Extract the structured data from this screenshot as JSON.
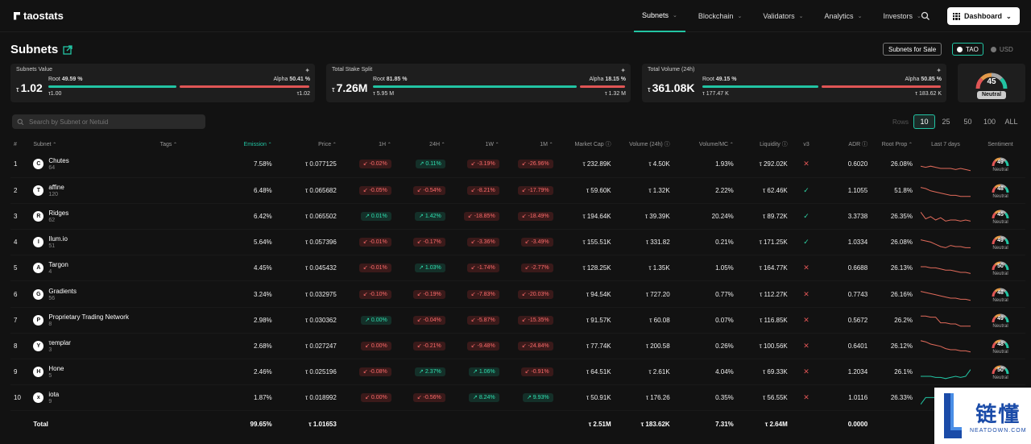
{
  "nav": {
    "logo": "taostats",
    "items": [
      {
        "label": "Subnets",
        "active": true
      },
      {
        "label": "Blockchain"
      },
      {
        "label": "Validators"
      },
      {
        "label": "Analytics"
      },
      {
        "label": "Investors"
      }
    ],
    "dashboard_label": "Dashboard"
  },
  "page": {
    "title": "Subnets",
    "sale_button": "Subnets for Sale",
    "currency": [
      "TAO",
      "USD"
    ]
  },
  "cards": {
    "value": {
      "label": "Subnets Value",
      "symbol": "τ",
      "big": "1.02",
      "root_label": "Root",
      "root_pct": "49.59 %",
      "alpha_label": "Alpha",
      "alpha_pct": "50.41 %",
      "root_val": "τ1.00",
      "alpha_val": "τ1.02",
      "root_fraction": 0.4959
    },
    "stake": {
      "label": "Total Stake Split",
      "symbol": "τ",
      "big": "7.26M",
      "root_label": "Root",
      "root_pct": "81.85 %",
      "alpha_label": "Alpha",
      "alpha_pct": "18.15 %",
      "root_val": "τ 5.95 M",
      "alpha_val": "τ 1.32 M",
      "root_fraction": 0.8185
    },
    "volume": {
      "label": "Total Volume (24h)",
      "symbol": "τ",
      "big": "361.08K",
      "root_label": "Root",
      "root_pct": "49.15 %",
      "alpha_label": "Alpha",
      "alpha_pct": "50.85 %",
      "root_val": "τ 177.47 K",
      "alpha_val": "τ 183.62 K",
      "root_fraction": 0.4915
    }
  },
  "fear_greed": {
    "value": "45",
    "label": "Neutral",
    "level": 45
  },
  "search": {
    "placeholder": "Search by Subnet or Netuid"
  },
  "rows_control": {
    "label": "Rows",
    "options": [
      "10",
      "25",
      "50",
      "100",
      "ALL"
    ],
    "selected": "10"
  },
  "table": {
    "headers": [
      "#",
      "Subnet",
      "Tags",
      "Emission",
      "Price",
      "1H",
      "24H",
      "1W",
      "1M",
      "Market Cap",
      "Volume (24h)",
      "Volume/MC",
      "Liquidity",
      "v3",
      "ADR",
      "Root Prop",
      "Last 7 days",
      "Sentiment"
    ],
    "rows": [
      {
        "n": "1",
        "name": "Chutes",
        "netuid": "64",
        "icon": "C",
        "emission": "7.58%",
        "price": "τ 0.077125",
        "h1": "-0.02%",
        "h24": "0.11%",
        "w1": "-3.19%",
        "m1": "-26.96%",
        "mcap": "τ 232.89K",
        "vol": "τ 4.50K",
        "vmc": "1.93%",
        "liq": "τ 292.02K",
        "v3": "x",
        "adr": "0.6020",
        "rp": "26.08%",
        "sent": "49",
        "sentl": "Neutral",
        "spark": [
          8,
          9,
          8,
          9,
          10,
          10,
          10,
          11,
          10,
          11,
          12
        ],
        "sc": "#e06a5a"
      },
      {
        "n": "2",
        "name": "affine",
        "netuid": "120",
        "icon": "T",
        "emission": "6.48%",
        "price": "τ 0.065682",
        "h1": "-0.05%",
        "h24": "-0.54%",
        "w1": "-8.21%",
        "m1": "-17.79%",
        "mcap": "τ 59.60K",
        "vol": "τ 1.32K",
        "vmc": "2.22%",
        "liq": "τ 62.46K",
        "v3": "ok",
        "adr": "1.1055",
        "rp": "51.8%",
        "sent": "48",
        "sentl": "Neutral",
        "spark": [
          4,
          5,
          7,
          8,
          9,
          10,
          11,
          11,
          12,
          12,
          12
        ],
        "sc": "#e06a5a"
      },
      {
        "n": "3",
        "name": "Ridges",
        "netuid": "62",
        "icon": "R",
        "emission": "6.42%",
        "price": "τ 0.065502",
        "h1": "0.01%",
        "h24": "1.42%",
        "w1": "-18.85%",
        "m1": "-18.49%",
        "mcap": "τ 194.64K",
        "vol": "τ 39.39K",
        "vmc": "20.24%",
        "liq": "τ 89.72K",
        "v3": "ok",
        "adr": "3.3738",
        "rp": "26.35%",
        "sent": "45",
        "sentl": "Neutral",
        "spark": [
          3,
          9,
          7,
          10,
          8,
          11,
          10,
          10,
          11,
          10,
          11
        ],
        "sc": "#e06a5a"
      },
      {
        "n": "4",
        "name": "Ilum.io",
        "netuid": "51",
        "icon": "I",
        "emission": "5.64%",
        "price": "τ 0.057396",
        "h1": "-0.01%",
        "h24": "-0.17%",
        "w1": "-3.36%",
        "m1": "-3.49%",
        "mcap": "τ 155.51K",
        "vol": "τ 331.82",
        "vmc": "0.21%",
        "liq": "τ 171.25K",
        "v3": "ok",
        "adr": "1.0334",
        "rp": "26.08%",
        "sent": "49",
        "sentl": "Neutral",
        "spark": [
          4,
          5,
          6,
          8,
          10,
          11,
          9,
          10,
          10,
          11,
          11
        ],
        "sc": "#e06a5a"
      },
      {
        "n": "5",
        "name": "Targon",
        "netuid": "4",
        "icon": "A",
        "emission": "4.45%",
        "price": "τ 0.045432",
        "h1": "-0.01%",
        "h24": "1.03%",
        "w1": "-1.74%",
        "m1": "-2.77%",
        "mcap": "τ 128.25K",
        "vol": "τ 1.35K",
        "vmc": "1.05%",
        "liq": "τ 164.77K",
        "v3": "x",
        "adr": "0.6688",
        "rp": "26.13%",
        "sent": "50",
        "sentl": "Neutral",
        "spark": [
          5,
          5,
          6,
          6,
          7,
          8,
          8,
          9,
          10,
          10,
          11
        ],
        "sc": "#e06a5a"
      },
      {
        "n": "6",
        "name": "Gradients",
        "netuid": "56",
        "icon": "G",
        "emission": "3.24%",
        "price": "τ 0.032975",
        "h1": "-0.10%",
        "h24": "-0.19%",
        "w1": "-7.83%",
        "m1": "-20.03%",
        "mcap": "τ 94.54K",
        "vol": "τ 727.20",
        "vmc": "0.77%",
        "liq": "τ 112.27K",
        "v3": "x",
        "adr": "0.7743",
        "rp": "26.16%",
        "sent": "48",
        "sentl": "Neutral",
        "spark": [
          4,
          5,
          6,
          7,
          8,
          9,
          10,
          10,
          11,
          11,
          12
        ],
        "sc": "#e06a5a"
      },
      {
        "n": "7",
        "name": "Proprietary Trading Network",
        "netuid": "8",
        "icon": "P",
        "emission": "2.98%",
        "price": "τ 0.030362",
        "h1": "0.00%",
        "h24": "-0.04%",
        "w1": "-5.87%",
        "m1": "-15.35%",
        "mcap": "τ 91.57K",
        "vol": "τ 60.08",
        "vmc": "0.07%",
        "liq": "τ 116.85K",
        "v3": "x",
        "adr": "0.5672",
        "rp": "26.2%",
        "sent": "49",
        "sentl": "Neutral",
        "spark": [
          3,
          3,
          4,
          4,
          9,
          9,
          10,
          10,
          12,
          12,
          12
        ],
        "sc": "#e06a5a"
      },
      {
        "n": "8",
        "name": "τemplar",
        "netuid": "3",
        "icon": "Y",
        "emission": "2.68%",
        "price": "τ 0.027247",
        "h1": "0.00%",
        "h24": "-0.21%",
        "w1": "-9.48%",
        "m1": "-24.84%",
        "mcap": "τ 77.74K",
        "vol": "τ 200.58",
        "vmc": "0.26%",
        "liq": "τ 100.56K",
        "v3": "x",
        "adr": "0.6401",
        "rp": "26.12%",
        "sent": "48",
        "sentl": "Neutral",
        "spark": [
          2,
          3,
          5,
          6,
          7,
          9,
          10,
          10,
          11,
          11,
          12
        ],
        "sc": "#e06a5a"
      },
      {
        "n": "9",
        "name": "Hone",
        "netuid": "5",
        "icon": "H",
        "emission": "2.46%",
        "price": "τ 0.025196",
        "h1": "-0.08%",
        "h24": "2.37%",
        "w1": "1.06%",
        "m1": "-0.91%",
        "mcap": "τ 64.51K",
        "vol": "τ 2.61K",
        "vmc": "4.04%",
        "liq": "τ 69.33K",
        "v3": "x",
        "adr": "1.2034",
        "rp": "26.1%",
        "sent": "50",
        "sentl": "Neutral",
        "spark": [
          10,
          10,
          10,
          11,
          11,
          12,
          11,
          10,
          11,
          10,
          4
        ],
        "sc": "#22c4a3"
      },
      {
        "n": "10",
        "name": "iota",
        "netuid": "9",
        "icon": "x",
        "emission": "1.87%",
        "price": "τ 0.018992",
        "h1": "0.00%",
        "h24": "-0.56%",
        "w1": "8.24%",
        "m1": "9.93%",
        "mcap": "τ 50.91K",
        "vol": "τ 176.26",
        "vmc": "0.35%",
        "liq": "τ 56.55K",
        "v3": "x",
        "adr": "1.0116",
        "rp": "26.33%",
        "sent": "",
        "sentl": "",
        "spark": [
          12,
          6,
          6,
          6,
          6,
          6,
          6,
          6,
          6,
          6,
          6
        ],
        "sc": "#22c4a3"
      }
    ],
    "total": {
      "label": "Total",
      "emission": "99.65%",
      "price": "τ 1.01653",
      "mcap": "τ 2.51M",
      "vol": "τ 183.62K",
      "vmc": "7.31%",
      "liq": "τ 2.64M",
      "adr": "0.0000"
    }
  },
  "watermark": {
    "cn": "链懂",
    "en": "NEATDOWN.COM"
  },
  "colors": {
    "accent": "#22c4a3",
    "negative": "#e05555",
    "positive": "#2fd3a4"
  }
}
